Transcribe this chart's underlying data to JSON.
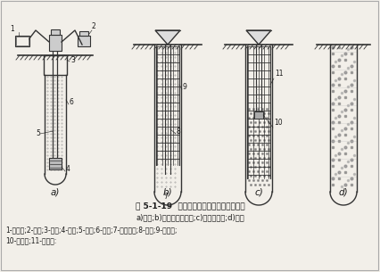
{
  "title": "图 5-1-19  泥浆护壁钻孔灌注桩施工顺序图",
  "subtitle": "a)钻孔;b)下钢筋笼及导管;c)灌注混凝土;d)成桩",
  "legend1": "1-泥浆泵;2-钻机;3-护筒;4-钻头;5-钻杆;6-泥浆;7-泥浆泥浆;8-导管;9-钢筋笼;",
  "legend2": "10-隔水塞;11-混凝土:",
  "bg_color": "#f2efe9",
  "label_a": "a)",
  "label_b": "b)",
  "label_c": "c)",
  "label_d": "d)",
  "text_color": "#1a1a1a",
  "border_color": "#444444",
  "line_color": "#333333"
}
